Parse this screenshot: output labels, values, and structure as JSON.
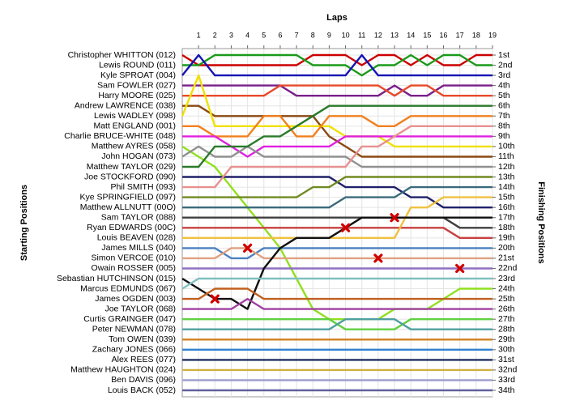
{
  "chart_data": {
    "type": "lap",
    "xlabel": "Laps",
    "ylabel": "Starting Positions",
    "y2label": "Finishing Positions",
    "x": [
      0,
      1,
      2,
      3,
      4,
      5,
      6,
      7,
      8,
      9,
      10,
      11,
      12,
      13,
      14,
      15,
      16,
      17,
      18,
      19
    ],
    "xlim": [
      0,
      19
    ],
    "xticks": [
      1,
      2,
      3,
      4,
      5,
      6,
      7,
      8,
      9,
      10,
      11,
      12,
      13,
      14,
      15,
      16,
      17,
      18,
      19
    ],
    "ylim": [
      1,
      34
    ],
    "yticks": [
      {
        "value": 1,
        "label": "1st"
      },
      {
        "value": 2,
        "label": "2nd"
      },
      {
        "value": 3,
        "label": "3rd"
      },
      {
        "value": 4,
        "label": "4th"
      },
      {
        "value": 5,
        "label": "5th"
      },
      {
        "value": 6,
        "label": "6th"
      },
      {
        "value": 7,
        "label": "7th"
      },
      {
        "value": 8,
        "label": "8th"
      },
      {
        "value": 9,
        "label": "9th"
      },
      {
        "value": 10,
        "label": "10th"
      },
      {
        "value": 11,
        "label": "11th"
      },
      {
        "value": 12,
        "label": "12th"
      },
      {
        "value": 13,
        "label": "13th"
      },
      {
        "value": 14,
        "label": "14th"
      },
      {
        "value": 15,
        "label": "15th"
      },
      {
        "value": 16,
        "label": "16th"
      },
      {
        "value": 17,
        "label": "17th"
      },
      {
        "value": 18,
        "label": "18th"
      },
      {
        "value": 19,
        "label": "19th"
      },
      {
        "value": 20,
        "label": "20th"
      },
      {
        "value": 21,
        "label": "21st"
      },
      {
        "value": 22,
        "label": "22nd"
      },
      {
        "value": 23,
        "label": "23rd"
      },
      {
        "value": 24,
        "label": "24th"
      },
      {
        "value": 25,
        "label": "25th"
      },
      {
        "value": 26,
        "label": "26th"
      },
      {
        "value": 27,
        "label": "27th"
      },
      {
        "value": 28,
        "label": "28th"
      },
      {
        "value": 29,
        "label": "29th"
      },
      {
        "value": 30,
        "label": "30th"
      },
      {
        "value": 31,
        "label": "31st"
      },
      {
        "value": 32,
        "label": "32nd"
      },
      {
        "value": 33,
        "label": "33rd"
      },
      {
        "value": 34,
        "label": "34th"
      }
    ],
    "grid": true,
    "series": [
      {
        "name": "Christopher WHITTON (012)",
        "color": "#cc0000",
        "values": [
          1,
          2,
          2,
          2,
          2,
          2,
          2,
          2,
          1,
          1,
          1,
          2,
          1,
          1,
          2,
          1,
          2,
          2,
          1,
          1
        ]
      },
      {
        "name": "Lewis ROUND (011)",
        "color": "#1a9a1a",
        "values": [
          2,
          2,
          1,
          1,
          1,
          1,
          1,
          1,
          2,
          2,
          2,
          3,
          2,
          2,
          1,
          2,
          1,
          1,
          2,
          2
        ]
      },
      {
        "name": "Kyle SPROAT (004)",
        "color": "#1414b4",
        "values": [
          3,
          1,
          3,
          3,
          3,
          3,
          3,
          3,
          3,
          3,
          3,
          1,
          3,
          3,
          3,
          3,
          3,
          3,
          3,
          3
        ]
      },
      {
        "name": "Sam FOWLER (027)",
        "color": "#7a1f8a",
        "values": [
          4,
          4,
          4,
          4,
          4,
          4,
          4,
          5,
          5,
          5,
          5,
          5,
          5,
          4,
          5,
          5,
          4,
          4,
          4,
          4
        ]
      },
      {
        "name": "Harry MOORE (025)",
        "color": "#e84a2a",
        "values": [
          5,
          5,
          5,
          5,
          5,
          5,
          4,
          4,
          4,
          4,
          4,
          4,
          4,
          5,
          4,
          4,
          5,
          5,
          5,
          5
        ]
      },
      {
        "name": "Andrew LAWRENCE (038)",
        "color": "#8a4a14",
        "values": [
          6,
          6,
          7,
          7,
          7,
          7,
          7,
          7,
          7,
          9,
          10,
          11,
          11,
          11,
          11,
          11,
          11,
          11,
          11,
          11
        ]
      },
      {
        "name": "Lewis WADLEY (098)",
        "color": "#f0e000",
        "values": [
          7,
          3,
          8,
          8,
          8,
          8,
          8,
          8,
          8,
          8,
          9,
          9,
          9,
          10,
          10,
          10,
          10,
          10,
          10,
          10
        ]
      },
      {
        "name": "Matt ENGLAND (001)",
        "color": "#f08020",
        "values": [
          8,
          8,
          9,
          9,
          9,
          7,
          7,
          9,
          9,
          7,
          7,
          7,
          8,
          8,
          7,
          7,
          7,
          7,
          7,
          7
        ]
      },
      {
        "name": "Charlie BRUCE-WHITE (048)",
        "color": "#e020e0",
        "values": [
          9,
          9,
          9,
          10,
          11,
          10,
          10,
          10,
          10,
          10,
          9,
          9,
          9,
          9,
          9,
          9,
          9,
          9,
          9,
          9
        ]
      },
      {
        "name": "Matthew AYRES (058)",
        "color": "#90e020",
        "values": [
          10,
          11,
          12,
          14,
          16,
          18,
          20,
          23,
          26,
          27,
          27,
          27,
          27,
          26,
          26,
          26,
          25,
          24,
          24,
          24
        ]
      },
      {
        "name": "John HOGAN (073)",
        "color": "#909090",
        "values": [
          11,
          10,
          11,
          11,
          10,
          11,
          11,
          11,
          11,
          11,
          11,
          12,
          12,
          12,
          12,
          12,
          12,
          12,
          12,
          12
        ]
      },
      {
        "name": "Matthew TAYLOR (029)",
        "color": "#2a7a2a",
        "values": [
          12,
          12,
          10,
          10,
          10,
          9,
          9,
          8,
          7,
          6,
          6,
          6,
          6,
          6,
          6,
          6,
          6,
          6,
          6,
          6
        ]
      },
      {
        "name": "Joe STOCKFORD (090)",
        "color": "#20206a",
        "values": [
          13,
          13,
          13,
          13,
          13,
          13,
          13,
          13,
          13,
          13,
          14,
          14,
          14,
          14,
          15,
          15,
          16,
          16,
          16,
          16
        ]
      },
      {
        "name": "Phil SMITH (093)",
        "color": "#e89090",
        "values": [
          14,
          14,
          14,
          12,
          12,
          12,
          12,
          12,
          12,
          12,
          12,
          10,
          10,
          9,
          8,
          8,
          8,
          8,
          8,
          8
        ]
      },
      {
        "name": "Kye SPRINGFIELD (097)",
        "color": "#708a20",
        "values": [
          15,
          15,
          15,
          15,
          15,
          15,
          15,
          15,
          14,
          14,
          13,
          13,
          13,
          13,
          13,
          13,
          13,
          13,
          13,
          13
        ]
      },
      {
        "name": "Matthew ALLNUTT (00O)",
        "color": "#3a6a7a",
        "values": [
          16,
          16,
          16,
          16,
          16,
          16,
          16,
          16,
          16,
          16,
          15,
          15,
          15,
          15,
          14,
          14,
          14,
          14,
          14,
          14
        ]
      },
      {
        "name": "Sam TAYLOR (088)",
        "color": "#404040",
        "values": [
          17,
          17,
          17,
          17,
          17,
          17,
          17,
          17,
          17,
          17,
          17,
          17,
          17,
          17,
          17,
          17,
          17,
          18,
          18,
          18
        ]
      },
      {
        "name": "Ryan EDWARDS (00C)",
        "color": "#c84040",
        "values": [
          18,
          18,
          18,
          18,
          18,
          18,
          18,
          18,
          18,
          18,
          18,
          18,
          18,
          18,
          18,
          18,
          18,
          19,
          19,
          19
        ]
      },
      {
        "name": "Louis BEAVEN (028)",
        "color": "#f0c040",
        "values": [
          19,
          19,
          19,
          19,
          19,
          19,
          19,
          19,
          19,
          19,
          19,
          19,
          19,
          19,
          16,
          16,
          15,
          15,
          15,
          15
        ]
      },
      {
        "name": "James MILLS (040)",
        "color": "#4a80c0",
        "values": [
          20,
          20,
          20,
          21,
          21,
          20,
          20,
          20,
          20,
          20,
          20,
          20,
          20,
          20,
          20,
          20,
          20,
          20,
          20,
          20
        ]
      },
      {
        "name": "Simon VERCOE (010)",
        "color": "#e0a080",
        "values": [
          21,
          21,
          21,
          20,
          20,
          21,
          21,
          21,
          21,
          21,
          21,
          21,
          21,
          21,
          21,
          21,
          21,
          21,
          21,
          21
        ]
      },
      {
        "name": "Owain ROSSER (005)",
        "color": "#9070c0",
        "values": [
          22,
          22,
          22,
          22,
          22,
          22,
          22,
          22,
          22,
          22,
          22,
          22,
          22,
          22,
          22,
          22,
          22,
          22,
          22,
          22
        ]
      },
      {
        "name": "Sebastian HUTCHINSON (015)",
        "color": "#101010",
        "values": [
          23,
          24,
          25,
          25,
          26,
          22,
          20,
          19,
          19,
          19,
          18,
          17,
          17,
          17,
          17,
          17,
          17,
          17,
          17,
          17
        ]
      },
      {
        "name": "Marcus EDMUNDS (067)",
        "color": "#80c0c0",
        "values": [
          24,
          23,
          23,
          23,
          23,
          23,
          23,
          23,
          23,
          23,
          23,
          23,
          23,
          23,
          23,
          23,
          23,
          23,
          23,
          23
        ]
      },
      {
        "name": "James OGDEN (003)",
        "color": "#c06020",
        "values": [
          25,
          25,
          24,
          24,
          24,
          25,
          25,
          25,
          25,
          25,
          25,
          25,
          25,
          25,
          25,
          25,
          25,
          25,
          25,
          25
        ]
      },
      {
        "name": "Joe TAYLOR (068)",
        "color": "#a040a0",
        "values": [
          26,
          26,
          26,
          26,
          25,
          26,
          26,
          26,
          26,
          26,
          26,
          26,
          26,
          26,
          26,
          26,
          26,
          26,
          26,
          26
        ]
      },
      {
        "name": "Curtis GRAINGER (047)",
        "color": "#60d040",
        "values": [
          27,
          27,
          27,
          27,
          27,
          27,
          27,
          27,
          27,
          27,
          28,
          28,
          28,
          28,
          27,
          27,
          27,
          27,
          27,
          27
        ]
      },
      {
        "name": "Peter NEWMAN (078)",
        "color": "#50a0a0",
        "values": [
          28,
          28,
          28,
          28,
          28,
          28,
          28,
          28,
          28,
          28,
          27,
          27,
          27,
          27,
          28,
          28,
          28,
          28,
          28,
          28
        ]
      },
      {
        "name": "Tom OWEN (039)",
        "color": "#d08020",
        "values": [
          29,
          29,
          29,
          29,
          29,
          29,
          29,
          29,
          29,
          29,
          29,
          29,
          29,
          29,
          29,
          29,
          29,
          29,
          29,
          29
        ]
      },
      {
        "name": "Zachary JONES (066)",
        "color": "#3080d0",
        "values": [
          30,
          30,
          30,
          30,
          30,
          30,
          30,
          30,
          30,
          30,
          30,
          30,
          30,
          30,
          30,
          30,
          30,
          30,
          30,
          30
        ]
      },
      {
        "name": "Alex REES (077)",
        "color": "#203060",
        "values": [
          31,
          31,
          31,
          31,
          31,
          31,
          31,
          31,
          31,
          31,
          31,
          31,
          31,
          31,
          31,
          31,
          31,
          31,
          31,
          31
        ]
      },
      {
        "name": "Matthew HAUGHTON (024)",
        "color": "#d0b040",
        "values": [
          32,
          32,
          32,
          32,
          32,
          32,
          32,
          32,
          32,
          32,
          32,
          32,
          32,
          32,
          32,
          32,
          32,
          32,
          32,
          32
        ]
      },
      {
        "name": "Ben DAVIS (096)",
        "color": "#a0a0d0",
        "values": [
          33,
          33,
          33,
          33,
          33,
          33,
          33,
          33,
          33,
          33,
          33,
          33,
          33,
          33,
          33,
          33,
          33,
          33,
          33,
          33
        ]
      },
      {
        "name": "Louis BACK (052)",
        "color": "#6060a0",
        "values": [
          34,
          34,
          34,
          34,
          34,
          34,
          34,
          34,
          34,
          34,
          34,
          34,
          34,
          34,
          34,
          34,
          34,
          34,
          34,
          34
        ]
      }
    ],
    "incidents": [
      {
        "x": 2,
        "y": 25
      },
      {
        "x": 4,
        "y": 20
      },
      {
        "x": 10,
        "y": 18
      },
      {
        "x": 12,
        "y": 21
      },
      {
        "x": 13,
        "y": 17
      },
      {
        "x": 17,
        "y": 22
      }
    ]
  }
}
